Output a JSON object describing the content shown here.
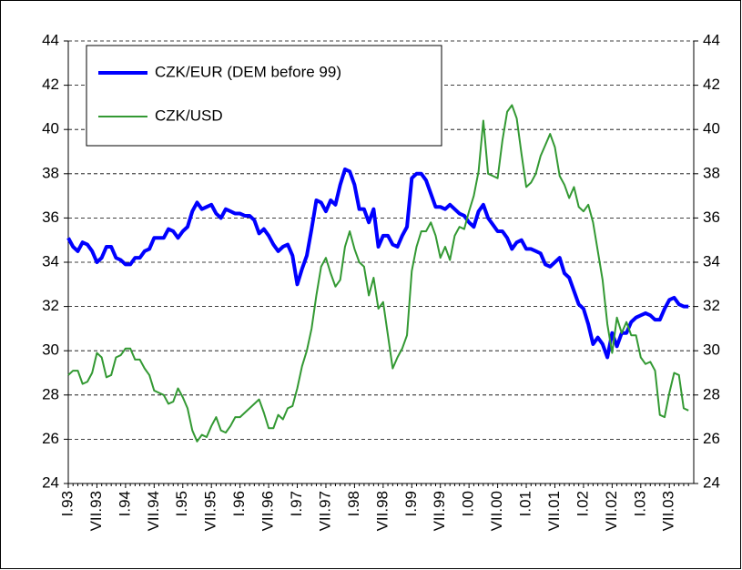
{
  "chart_data": {
    "type": "line",
    "categories": [
      "I.93",
      null,
      null,
      null,
      null,
      null,
      "VII.93",
      null,
      null,
      null,
      null,
      null,
      "I.94",
      null,
      null,
      null,
      null,
      null,
      "VII.94",
      null,
      null,
      null,
      null,
      null,
      "I.95",
      null,
      null,
      null,
      null,
      null,
      "VII.95",
      null,
      null,
      null,
      null,
      null,
      "I.96",
      null,
      null,
      null,
      null,
      null,
      "VII.96",
      null,
      null,
      null,
      null,
      null,
      "I.97",
      null,
      null,
      null,
      null,
      null,
      "VII.97",
      null,
      null,
      null,
      null,
      null,
      "I.98",
      null,
      null,
      null,
      null,
      null,
      "VII.98",
      null,
      null,
      null,
      null,
      null,
      "I.99",
      null,
      null,
      null,
      null,
      null,
      "VII.99",
      null,
      null,
      null,
      null,
      null,
      "I.00",
      null,
      null,
      null,
      null,
      null,
      "VII.00",
      null,
      null,
      null,
      null,
      null,
      "I.01",
      null,
      null,
      null,
      null,
      null,
      "VII.01",
      null,
      null,
      null,
      null,
      null,
      "I.02",
      null,
      null,
      null,
      null,
      null,
      "VII.02",
      null,
      null,
      null,
      null,
      null,
      "I.03",
      null,
      null,
      null,
      null,
      null,
      "VII.03",
      null,
      null,
      null,
      null
    ],
    "series": [
      {
        "name": "CZK/EUR (DEM before 99)",
        "color": "#0000ff",
        "values": [
          35.1,
          34.7,
          34.5,
          34.9,
          34.8,
          34.5,
          34.0,
          34.2,
          34.7,
          34.7,
          34.2,
          34.1,
          33.9,
          33.9,
          34.2,
          34.2,
          34.5,
          34.6,
          35.1,
          35.1,
          35.1,
          35.5,
          35.4,
          35.1,
          35.4,
          35.6,
          36.3,
          36.7,
          36.4,
          36.5,
          36.6,
          36.2,
          36.0,
          36.4,
          36.3,
          36.2,
          36.2,
          36.1,
          36.1,
          35.9,
          35.3,
          35.5,
          35.2,
          34.8,
          34.5,
          34.7,
          34.8,
          34.3,
          33.0,
          33.7,
          34.3,
          35.5,
          36.8,
          36.7,
          36.3,
          36.8,
          36.6,
          37.5,
          38.2,
          38.1,
          37.5,
          36.4,
          36.4,
          35.8,
          36.4,
          34.7,
          35.2,
          35.2,
          34.8,
          34.7,
          35.2,
          35.6,
          37.8,
          38.0,
          38.0,
          37.7,
          37.1,
          36.5,
          36.5,
          36.4,
          36.6,
          36.4,
          36.2,
          36.1,
          35.8,
          35.6,
          36.3,
          36.6,
          36.0,
          35.7,
          35.4,
          35.4,
          35.1,
          34.6,
          34.9,
          35.0,
          34.6,
          34.6,
          34.5,
          34.4,
          33.9,
          33.8,
          34.0,
          34.2,
          33.5,
          33.3,
          32.7,
          32.1,
          31.9,
          31.2,
          30.3,
          30.6,
          30.3,
          29.7,
          30.8,
          30.2,
          30.8,
          30.8,
          31.3,
          31.5,
          31.6,
          31.7,
          31.6,
          31.4,
          31.4,
          31.9,
          32.3,
          32.4,
          32.1,
          32.0,
          32.0
        ]
      },
      {
        "name": "CZK/USD",
        "color": "#339933",
        "values": [
          28.9,
          29.1,
          29.1,
          28.5,
          28.6,
          29.0,
          29.9,
          29.7,
          28.8,
          28.9,
          29.7,
          29.8,
          30.1,
          30.1,
          29.6,
          29.6,
          29.2,
          28.9,
          28.2,
          28.1,
          28.0,
          27.6,
          27.7,
          28.3,
          27.9,
          27.4,
          26.4,
          25.9,
          26.2,
          26.1,
          26.6,
          27.0,
          26.4,
          26.3,
          26.6,
          27.0,
          27.0,
          27.2,
          27.4,
          27.6,
          27.8,
          27.2,
          26.5,
          26.5,
          27.1,
          26.9,
          27.4,
          27.5,
          28.3,
          29.3,
          30.0,
          31.0,
          32.5,
          33.8,
          34.2,
          33.5,
          32.9,
          33.2,
          34.7,
          35.4,
          34.6,
          34.0,
          33.8,
          32.5,
          33.3,
          31.9,
          32.2,
          30.7,
          29.2,
          29.7,
          30.1,
          30.7,
          33.6,
          34.7,
          35.4,
          35.4,
          35.8,
          35.2,
          34.2,
          34.7,
          34.1,
          35.2,
          35.6,
          35.5,
          36.3,
          37.0,
          38.1,
          40.4,
          38.0,
          37.9,
          37.8,
          39.5,
          40.8,
          41.1,
          40.5,
          38.9,
          37.4,
          37.6,
          38.0,
          38.8,
          39.3,
          39.8,
          39.2,
          37.9,
          37.5,
          36.9,
          37.4,
          36.5,
          36.3,
          36.6,
          35.8,
          34.5,
          33.2,
          31.2,
          29.9,
          31.5,
          30.8,
          31.3,
          30.7,
          30.7,
          29.7,
          29.4,
          29.5,
          29.1,
          27.1,
          27.0,
          28.1,
          29.0,
          28.9,
          27.4,
          27.3
        ]
      }
    ],
    "ylim": [
      24,
      44
    ],
    "yticks": [
      24,
      26,
      28,
      30,
      32,
      34,
      36,
      38,
      40,
      42,
      44
    ],
    "y2lim": [
      24,
      44
    ],
    "y2ticks": [
      24,
      26,
      28,
      30,
      32,
      34,
      36,
      38,
      40,
      42,
      44
    ],
    "grid": true,
    "legend": "upper left"
  }
}
